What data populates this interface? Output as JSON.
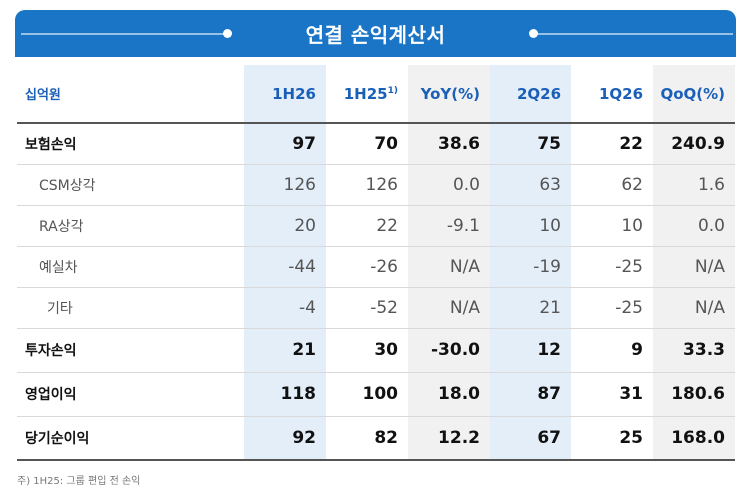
{
  "header": {
    "title": "연결 손익계산서"
  },
  "table": {
    "unit": "십억원",
    "columns": [
      {
        "label": "1H26",
        "sup": ""
      },
      {
        "label": "1H25",
        "sup": "1)"
      },
      {
        "label": "YoY(%)",
        "sup": ""
      },
      {
        "label": "2Q26",
        "sup": ""
      },
      {
        "label": "1Q26",
        "sup": ""
      },
      {
        "label": "QoQ(%)",
        "sup": ""
      }
    ],
    "rows": [
      {
        "label": "보험손익",
        "values": [
          "97",
          "70",
          "38.6",
          "75",
          "22",
          "240.9"
        ]
      },
      {
        "label": "CSM상각",
        "values": [
          "126",
          "126",
          "0.0",
          "63",
          "62",
          "1.6"
        ]
      },
      {
        "label": "RA상각",
        "values": [
          "20",
          "22",
          "-9.1",
          "10",
          "10",
          "0.0"
        ]
      },
      {
        "label": "예실차",
        "values": [
          "-44",
          "-26",
          "N/A",
          "-19",
          "-25",
          "N/A"
        ]
      },
      {
        "label": "기타",
        "values": [
          "-4",
          "-52",
          "N/A",
          "21",
          "-25",
          "N/A"
        ]
      },
      {
        "label": "투자손익",
        "values": [
          "21",
          "30",
          "-30.0",
          "12",
          "9",
          "33.3"
        ]
      },
      {
        "label": "영업이익",
        "values": [
          "118",
          "100",
          "18.0",
          "87",
          "31",
          "180.6"
        ]
      },
      {
        "label": "당기순이익",
        "values": [
          "92",
          "82",
          "12.2",
          "67",
          "25",
          "168.0"
        ]
      }
    ]
  },
  "footnote": "주) 1H25: 그룹 편입 전 손익",
  "colors": {
    "header_bg": "#1a75c6",
    "header_text": "#1a60b8",
    "highlight": "#e3eef9",
    "gray": "#f1f1f1"
  }
}
